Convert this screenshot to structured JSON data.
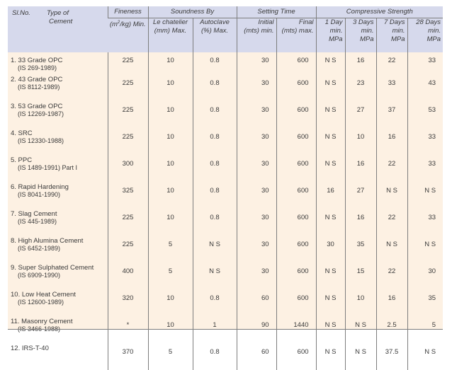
{
  "headers": {
    "sl_no": "Sl.No.",
    "type_line1": "Type of",
    "type_line2": "Cement",
    "fineness": "Fineness",
    "fineness_unit_sup": "2",
    "fineness_unit_pre": "(m",
    "fineness_unit_post": "/kg) Min.",
    "soundness": "Soundness By",
    "le_chatelier_1": "Le chatelier",
    "le_chatelier_2": "(mm) Max.",
    "autoclave_1": "Autoclave",
    "autoclave_2": "(%) Max.",
    "setting_time": "Setting Time",
    "initial_1": "Initial",
    "initial_2": "(mts) min.",
    "final_1": "Final",
    "final_2": "(mts) max.",
    "compressive": "Compressive Strength",
    "d1_1": "1 Day",
    "d1_2": "min.",
    "d1_3": "MPa",
    "d3_1": "3 Days",
    "d3_2": "min.",
    "d3_3": "MPa",
    "d7_1": "7 Days",
    "d7_2": "min.",
    "d7_3": "MPa",
    "d28_1": "28 Days",
    "d28_2": "min.",
    "d28_3": "MPa"
  },
  "rows": [
    {
      "name": "1.  33 Grade OPC",
      "std": "(IS 269-1989)",
      "fineness": "225",
      "le": "10",
      "auto": "0.8",
      "initial": "30",
      "final": "600",
      "d1": "N S",
      "d3": "16",
      "d7": "22",
      "d28": "33"
    },
    {
      "name": "2.  43 Grade OPC",
      "std": "(IS 8112-1989)",
      "fineness": "225",
      "le": "10",
      "auto": "0.8",
      "initial": "30",
      "final": "600",
      "d1": "N S",
      "d3": "23",
      "d7": "33",
      "d28": "43"
    },
    {
      "name": "3.  53 Grade OPC",
      "std": "(IS 12269-1987)",
      "fineness": "225",
      "le": "10",
      "auto": "0.8",
      "initial": "30",
      "final": "600",
      "d1": "N S",
      "d3": "27",
      "d7": "37",
      "d28": "53"
    },
    {
      "name": "4.  SRC",
      "std": "(IS 12330-1988)",
      "fineness": "225",
      "le": "10",
      "auto": "0.8",
      "initial": "30",
      "final": "600",
      "d1": "N S",
      "d3": "10",
      "d7": "16",
      "d28": "33"
    },
    {
      "name": "5.  PPC",
      "std": "(IS 1489-1991) Part I",
      "fineness": "300",
      "le": "10",
      "auto": "0.8",
      "initial": "30",
      "final": "600",
      "d1": "N S",
      "d3": "16",
      "d7": "22",
      "d28": "33"
    },
    {
      "name": "6.  Rapid Hardening",
      "std": "(IS 8041-1990)",
      "fineness": "325",
      "le": "10",
      "auto": "0.8",
      "initial": "30",
      "final": "600",
      "d1": "16",
      "d3": "27",
      "d7": "N S",
      "d28": "N S"
    },
    {
      "name": "7.  Slag Cement",
      "std": "(IS 445-1989)",
      "fineness": "225",
      "le": "10",
      "auto": "0.8",
      "initial": "30",
      "final": "600",
      "d1": "N S",
      "d3": "16",
      "d7": "22",
      "d28": "33"
    },
    {
      "name": "8.  High Alumina Cement",
      "std": "(IS 6452-1989)",
      "fineness": "225",
      "le": "5",
      "auto": "N S",
      "initial": "30",
      "final": "600",
      "d1": "30",
      "d3": "35",
      "d7": "N S",
      "d28": "N S"
    },
    {
      "name": "9.  Super Sulphated Cement",
      "std": "(IS 6909-1990)",
      "fineness": "400",
      "le": "5",
      "auto": "N S",
      "initial": "30",
      "final": "600",
      "d1": "N S",
      "d3": "15",
      "d7": "22",
      "d28": "30"
    },
    {
      "name": "10. Low Heat Cement",
      "std": "(IS 12600-1989)",
      "fineness": "320",
      "le": "10",
      "auto": "0.8",
      "initial": "60",
      "final": "600",
      "d1": "N S",
      "d3": "10",
      "d7": "16",
      "d28": "35"
    },
    {
      "name": "11. Masonry Cement",
      "std": "(IS 3466-1988)",
      "fineness": "*",
      "le": "10",
      "auto": "1",
      "initial": "90",
      "final": "1440",
      "d1": "N S",
      "d3": "N S",
      "d7": "2.5",
      "d28": "5"
    },
    {
      "name": "12. IRS-T-40",
      "std": "",
      "fineness": "370",
      "le": "5",
      "auto": "0.8",
      "initial": "60",
      "final": "600",
      "d1": "N S",
      "d3": "N S",
      "d7": "37.5",
      "d28": "N S"
    }
  ]
}
